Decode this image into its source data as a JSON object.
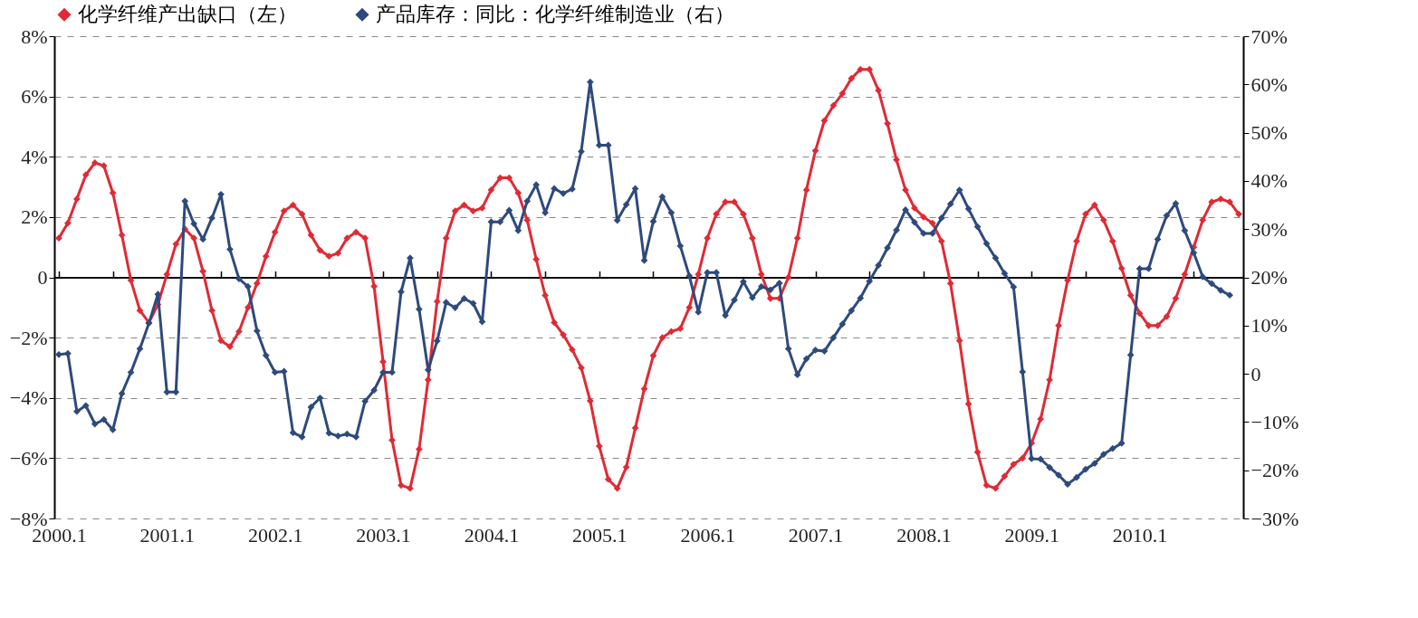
{
  "chart_data": {
    "type": "line",
    "categories": [
      "2000.1",
      null,
      null,
      null,
      null,
      null,
      null,
      null,
      null,
      null,
      null,
      null,
      "2001.1",
      null,
      null,
      null,
      null,
      null,
      null,
      null,
      null,
      null,
      null,
      null,
      "2002.1",
      null,
      null,
      null,
      null,
      null,
      null,
      null,
      null,
      null,
      null,
      null,
      "2003.1",
      null,
      null,
      null,
      null,
      null,
      null,
      null,
      null,
      null,
      null,
      null,
      "2004.1",
      null,
      null,
      null,
      null,
      null,
      null,
      null,
      null,
      null,
      null,
      null,
      "2005.1",
      null,
      null,
      null,
      null,
      null,
      null,
      null,
      null,
      null,
      null,
      null,
      "2006.1",
      null,
      null,
      null,
      null,
      null,
      null,
      null,
      null,
      null,
      null,
      null,
      "2007.1",
      null,
      null,
      null,
      null,
      null,
      null,
      null,
      null,
      null,
      null,
      null,
      "2008.1",
      null,
      null,
      null,
      null,
      null,
      null,
      null,
      null,
      null,
      null,
      null,
      "2009.1",
      null,
      null,
      null,
      null,
      null,
      null,
      null,
      null,
      null,
      null,
      null,
      "2010.1",
      null,
      null,
      null,
      null,
      null,
      null,
      null,
      null,
      null,
      null,
      null
    ],
    "series": [
      {
        "name": "化学纤维产出缺口（左）",
        "color": "#e02a35",
        "values": [
          1.3,
          1.8,
          2.6,
          3.4,
          3.8,
          3.7,
          2.8,
          1.4,
          -0.1,
          -1.1,
          -1.5,
          -0.9,
          0.1,
          1.1,
          1.6,
          1.3,
          0.2,
          -1.1,
          -2.1,
          -2.3,
          -1.8,
          -1.0,
          -0.2,
          0.7,
          1.5,
          2.2,
          2.4,
          2.1,
          1.4,
          0.9,
          0.7,
          0.8,
          1.3,
          1.5,
          1.3,
          -0.3,
          -2.8,
          -5.4,
          -6.9,
          -7.0,
          -5.7,
          -3.4,
          -0.8,
          1.3,
          2.2,
          2.4,
          2.2,
          2.3,
          2.9,
          3.3,
          3.3,
          2.8,
          1.9,
          0.6,
          -0.6,
          -1.5,
          -1.9,
          -2.4,
          -3.0,
          -4.1,
          -5.6,
          -6.7,
          -7.0,
          -6.3,
          -5.0,
          -3.7,
          -2.6,
          -2.0,
          -1.8,
          -1.7,
          -1.0,
          0.1,
          1.3,
          2.1,
          2.5,
          2.5,
          2.1,
          1.3,
          0.1,
          -0.7,
          -0.7,
          0.0,
          1.3,
          2.9,
          4.2,
          5.2,
          5.7,
          6.1,
          6.6,
          6.9,
          6.9,
          6.2,
          5.1,
          3.9,
          2.9,
          2.3,
          2.0,
          1.8,
          1.2,
          -0.2,
          -2.1,
          -4.2,
          -5.8,
          -6.9,
          -7.0,
          -6.6,
          -6.2,
          -6.0,
          -5.5,
          -4.7,
          -3.4,
          -1.6,
          -0.1,
          1.2,
          2.1,
          2.4,
          1.9,
          1.2,
          0.3,
          -0.6,
          -1.2,
          -1.6,
          -1.6,
          -1.3,
          -0.7,
          0.1,
          1.0,
          1.9,
          2.5,
          2.6,
          2.5,
          2.1
        ]
      },
      {
        "name": "产品库存：同比：化学纤维制造业（右）",
        "color": "#2e4a7c",
        "axis": "y2",
        "values": [
          4.0,
          4.2,
          -7.8,
          -6.6,
          -10.4,
          -9.5,
          -11.6,
          -4.1,
          0.3,
          5.2,
          10.5,
          16.5,
          -3.8,
          -3.8,
          35.8,
          31.1,
          27.9,
          32.3,
          37.2,
          25.8,
          19.7,
          18.1,
          8.9,
          3.8,
          0.3,
          0.5,
          -12.2,
          -13.1,
          -6.9,
          -5.0,
          -12.3,
          -12.9,
          -12.5,
          -13.1,
          -5.7,
          -3.4,
          0.3,
          0.3,
          17.0,
          24.0,
          13.4,
          0.8,
          6.8,
          14.8,
          13.7,
          15.6,
          14.6,
          10.8,
          31.5,
          31.5,
          33.9,
          29.7,
          35.8,
          39.2,
          33.4,
          38.4,
          37.4,
          38.3,
          46.1,
          60.5,
          47.4,
          47.4,
          31.8,
          35.1,
          38.4,
          23.5,
          31.6,
          36.7,
          33.4,
          26.5,
          20.3,
          12.8,
          21.0,
          21.0,
          12.1,
          15.3,
          19.1,
          15.8,
          18.1,
          17.4,
          18.8,
          5.2,
          -0.2,
          3.1,
          4.9,
          4.7,
          7.5,
          10.3,
          13.1,
          15.7,
          19.2,
          22.5,
          26.1,
          29.8,
          34.0,
          31.4,
          29.1,
          29.1,
          32.3,
          35.2,
          38.1,
          34.2,
          30.5,
          27.0,
          24.0,
          20.8,
          18.0,
          0.4,
          -17.6,
          -17.7,
          -19.4,
          -21.0,
          -22.9,
          -21.5,
          -19.8,
          -18.6,
          -16.7,
          -15.5,
          -14.4,
          3.9,
          21.8,
          21.8,
          27.9,
          32.8,
          35.3,
          29.7,
          25.1,
          20.1,
          18.7,
          17.3,
          16.3,
          null
        ]
      }
    ],
    "ylim": [
      -8,
      8
    ],
    "yticks": [
      {
        "value": -8,
        "label": "−8%"
      },
      {
        "value": -6,
        "label": "−6%"
      },
      {
        "value": -4,
        "label": "−4%"
      },
      {
        "value": -2,
        "label": "−2%"
      },
      0,
      {
        "value": 2,
        "label": "2%"
      },
      {
        "value": 4,
        "label": "4%"
      },
      {
        "value": 6,
        "label": "6%"
      },
      {
        "value": 8,
        "label": "8%"
      }
    ],
    "y2lim": [
      -30,
      70
    ],
    "y2ticks": [
      {
        "value": -30,
        "label": "−30%"
      },
      {
        "value": -20,
        "label": "−20%"
      },
      {
        "value": -10,
        "label": "−10%"
      },
      0,
      {
        "value": 10,
        "label": "10%"
      },
      {
        "value": 20,
        "label": "20%"
      },
      {
        "value": 30,
        "label": "30%"
      },
      {
        "value": 40,
        "label": "40%"
      },
      {
        "value": 50,
        "label": "50%"
      },
      {
        "value": 60,
        "label": "60%"
      },
      {
        "value": 70,
        "label": "70%"
      }
    ],
    "grid": "y",
    "legend": "top",
    "marker": "diamond",
    "line_style": "solid"
  }
}
